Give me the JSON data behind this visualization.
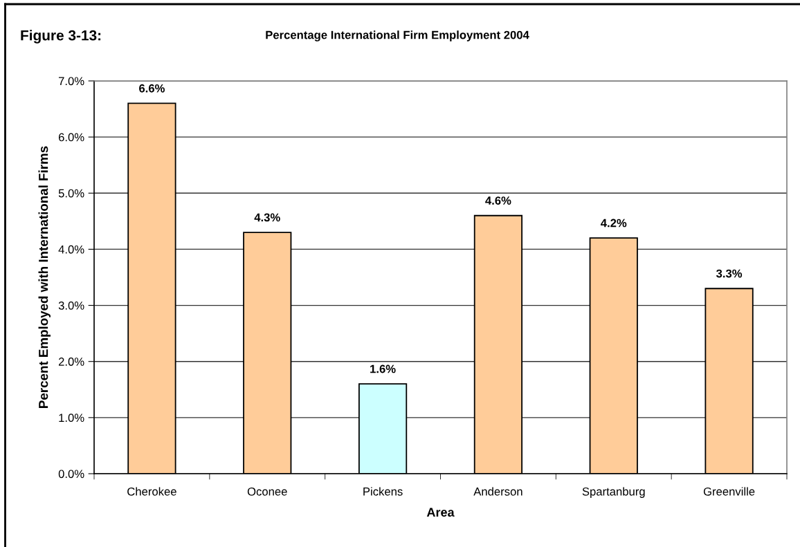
{
  "chart_data": {
    "type": "bar",
    "title": "Percentage International Firm Employment 2004",
    "annotations": [
      "Figure 3-13:"
    ],
    "xlabel": "Area",
    "ylabel": "Percent Employed with International Firms",
    "categories": [
      "Cherokee",
      "Oconee",
      "Pickens",
      "Anderson",
      "Spartanburg",
      "Greenville"
    ],
    "values": [
      6.6,
      4.3,
      1.6,
      4.6,
      4.2,
      3.3
    ],
    "colors": [
      "#ffcc99",
      "#ffcc99",
      "#ccffff",
      "#ffcc99",
      "#ffcc99",
      "#ffcc99"
    ],
    "value_labels": [
      "6.6%",
      "4.3%",
      "1.6%",
      "4.6%",
      "4.2%",
      "3.3%"
    ],
    "ylim": [
      0,
      7
    ],
    "yticks": [
      {
        "value": 0,
        "label": "0.0%"
      },
      {
        "value": 1,
        "label": "1.0%"
      },
      {
        "value": 2,
        "label": "2.0%"
      },
      {
        "value": 3,
        "label": "3.0%"
      },
      {
        "value": 4,
        "label": "4.0%"
      },
      {
        "value": 5,
        "label": "5.0%"
      },
      {
        "value": 6,
        "label": "6.0%"
      },
      {
        "value": 7,
        "label": "7.0%"
      }
    ],
    "grid": "y",
    "legend": false
  }
}
